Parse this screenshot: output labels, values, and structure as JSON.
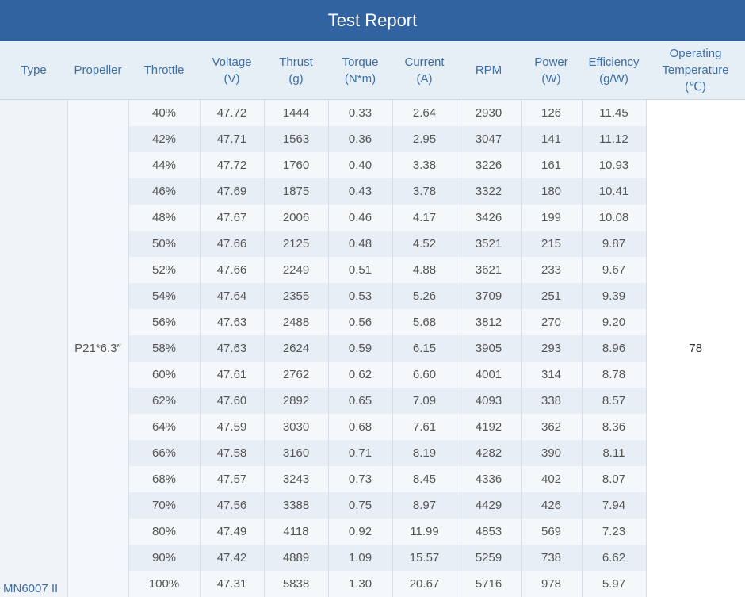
{
  "title": "Test Report",
  "headers": {
    "type": "Type",
    "propeller": "Propeller",
    "throttle": "Throttle",
    "voltage": [
      "Voltage",
      "(V)"
    ],
    "thrust": [
      "Thrust",
      "(g)"
    ],
    "torque": [
      "Torque",
      "(N*m)"
    ],
    "current": [
      "Current",
      "(A)"
    ],
    "rpm": "RPM",
    "power": [
      "Power",
      "(W)"
    ],
    "efficiency": [
      "Efficiency",
      "(g/W)"
    ],
    "temperature": [
      "Operating",
      "Temperature",
      "(℃)"
    ]
  },
  "type": "MN6007 II",
  "propeller": "P21*6.3″",
  "temperature": "78",
  "rows": [
    [
      "40%",
      "47.72",
      "1444",
      "0.33",
      "2.64",
      "2930",
      "126",
      "11.45"
    ],
    [
      "42%",
      "47.71",
      "1563",
      "0.36",
      "2.95",
      "3047",
      "141",
      "11.12"
    ],
    [
      "44%",
      "47.72",
      "1760",
      "0.40",
      "3.38",
      "3226",
      "161",
      "10.93"
    ],
    [
      "46%",
      "47.69",
      "1875",
      "0.43",
      "3.78",
      "3322",
      "180",
      "10.41"
    ],
    [
      "48%",
      "47.67",
      "2006",
      "0.46",
      "4.17",
      "3426",
      "199",
      "10.08"
    ],
    [
      "50%",
      "47.66",
      "2125",
      "0.48",
      "4.52",
      "3521",
      "215",
      "9.87"
    ],
    [
      "52%",
      "47.66",
      "2249",
      "0.51",
      "4.88",
      "3621",
      "233",
      "9.67"
    ],
    [
      "54%",
      "47.64",
      "2355",
      "0.53",
      "5.26",
      "3709",
      "251",
      "9.39"
    ],
    [
      "56%",
      "47.63",
      "2488",
      "0.56",
      "5.68",
      "3812",
      "270",
      "9.20"
    ],
    [
      "58%",
      "47.63",
      "2624",
      "0.59",
      "6.15",
      "3905",
      "293",
      "8.96"
    ],
    [
      "60%",
      "47.61",
      "2762",
      "0.62",
      "6.60",
      "4001",
      "314",
      "8.78"
    ],
    [
      "62%",
      "47.60",
      "2892",
      "0.65",
      "7.09",
      "4093",
      "338",
      "8.57"
    ],
    [
      "64%",
      "47.59",
      "3030",
      "0.68",
      "7.61",
      "4192",
      "362",
      "8.36"
    ],
    [
      "66%",
      "47.58",
      "3160",
      "0.71",
      "8.19",
      "4282",
      "390",
      "8.11"
    ],
    [
      "68%",
      "47.57",
      "3243",
      "0.73",
      "8.45",
      "4336",
      "402",
      "8.07"
    ],
    [
      "70%",
      "47.56",
      "3388",
      "0.75",
      "8.97",
      "4429",
      "426",
      "7.94"
    ],
    [
      "80%",
      "47.49",
      "4118",
      "0.92",
      "11.99",
      "4853",
      "569",
      "7.23"
    ],
    [
      "90%",
      "47.42",
      "4889",
      "1.09",
      "15.57",
      "5259",
      "738",
      "6.62"
    ],
    [
      "100%",
      "47.31",
      "5838",
      "1.30",
      "20.67",
      "5716",
      "978",
      "5.97"
    ]
  ]
}
